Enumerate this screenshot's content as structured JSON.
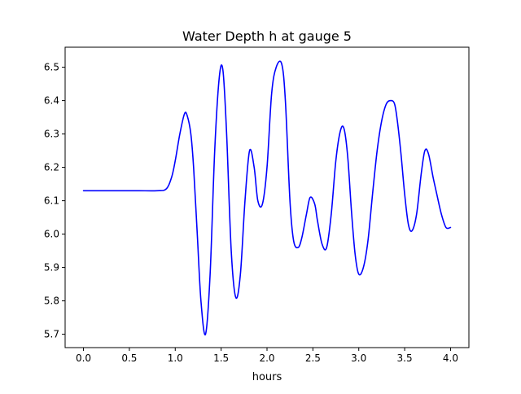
{
  "chart_data": {
    "type": "line",
    "title": "Water Depth h at gauge 5",
    "xlabel": "hours",
    "ylabel": "",
    "xlim": [
      -0.2,
      4.2
    ],
    "ylim": [
      5.66,
      6.56
    ],
    "grid": false,
    "legend": "none",
    "x_ticks": [
      {
        "value": 0.0,
        "label": "0.0"
      },
      {
        "value": 0.5,
        "label": "0.5"
      },
      {
        "value": 1.0,
        "label": "1.0"
      },
      {
        "value": 1.5,
        "label": "1.5"
      },
      {
        "value": 2.0,
        "label": "2.0"
      },
      {
        "value": 2.5,
        "label": "2.5"
      },
      {
        "value": 3.0,
        "label": "3.0"
      },
      {
        "value": 3.5,
        "label": "3.5"
      },
      {
        "value": 4.0,
        "label": "4.0"
      }
    ],
    "y_ticks": [
      {
        "value": 5.7,
        "label": "5.7"
      },
      {
        "value": 5.8,
        "label": "5.8"
      },
      {
        "value": 5.9,
        "label": "5.9"
      },
      {
        "value": 6.0,
        "label": "6.0"
      },
      {
        "value": 6.1,
        "label": "6.1"
      },
      {
        "value": 6.2,
        "label": "6.2"
      },
      {
        "value": 6.3,
        "label": "6.3"
      },
      {
        "value": 6.4,
        "label": "6.4"
      },
      {
        "value": 6.5,
        "label": "6.5"
      }
    ],
    "series": [
      {
        "color": "#0000ff",
        "x": [
          0.0,
          0.2,
          0.4,
          0.6,
          0.8,
          0.9,
          0.96,
          1.0,
          1.05,
          1.1,
          1.13,
          1.17,
          1.2,
          1.24,
          1.28,
          1.33,
          1.38,
          1.43,
          1.48,
          1.52,
          1.56,
          1.61,
          1.66,
          1.71,
          1.76,
          1.81,
          1.86,
          1.9,
          1.95,
          2.0,
          2.05,
          2.1,
          2.16,
          2.2,
          2.25,
          2.29,
          2.34,
          2.38,
          2.43,
          2.47,
          2.52,
          2.55,
          2.6,
          2.65,
          2.7,
          2.75,
          2.8,
          2.84,
          2.88,
          2.92,
          2.96,
          3.0,
          3.05,
          3.1,
          3.15,
          3.2,
          3.25,
          3.3,
          3.35,
          3.39,
          3.42,
          3.46,
          3.5,
          3.54,
          3.58,
          3.63,
          3.68,
          3.72,
          3.76,
          3.81,
          3.85,
          3.9,
          3.95,
          4.0
        ],
        "y": [
          6.13,
          6.13,
          6.13,
          6.13,
          6.13,
          6.135,
          6.17,
          6.22,
          6.3,
          6.36,
          6.355,
          6.3,
          6.2,
          6.0,
          5.8,
          5.7,
          5.88,
          6.25,
          6.47,
          6.49,
          6.3,
          5.95,
          5.81,
          5.88,
          6.1,
          6.25,
          6.2,
          6.1,
          6.09,
          6.2,
          6.42,
          6.5,
          6.51,
          6.4,
          6.1,
          5.98,
          5.96,
          5.99,
          6.06,
          6.11,
          6.09,
          6.04,
          5.97,
          5.96,
          6.06,
          6.22,
          6.31,
          6.315,
          6.23,
          6.07,
          5.94,
          5.88,
          5.9,
          5.98,
          6.12,
          6.25,
          6.34,
          6.39,
          6.4,
          6.39,
          6.34,
          6.24,
          6.12,
          6.03,
          6.01,
          6.06,
          6.18,
          6.25,
          6.24,
          6.17,
          6.12,
          6.06,
          6.02,
          6.02
        ]
      }
    ]
  }
}
